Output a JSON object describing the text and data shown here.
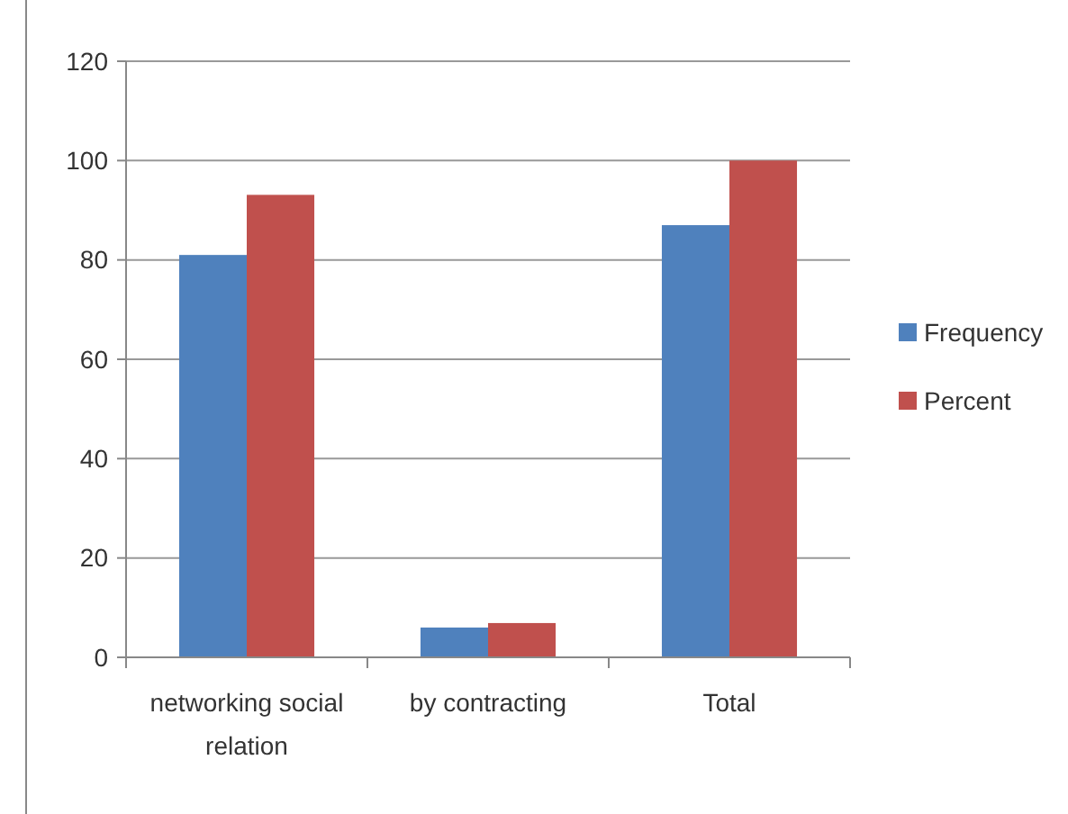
{
  "chart_data": {
    "type": "bar",
    "categories": [
      "networking social relation",
      "by contracting",
      "Total"
    ],
    "series": [
      {
        "name": "Frequency",
        "color": "#4f81bd",
        "values": [
          81,
          6,
          87
        ]
      },
      {
        "name": "Percent",
        "color": "#c0504d",
        "values": [
          93.1,
          6.9,
          100
        ]
      }
    ],
    "ylim": [
      0,
      120
    ],
    "yticks": [
      0,
      20,
      40,
      60,
      80,
      100,
      120
    ],
    "grid": "y",
    "legend": "right"
  }
}
